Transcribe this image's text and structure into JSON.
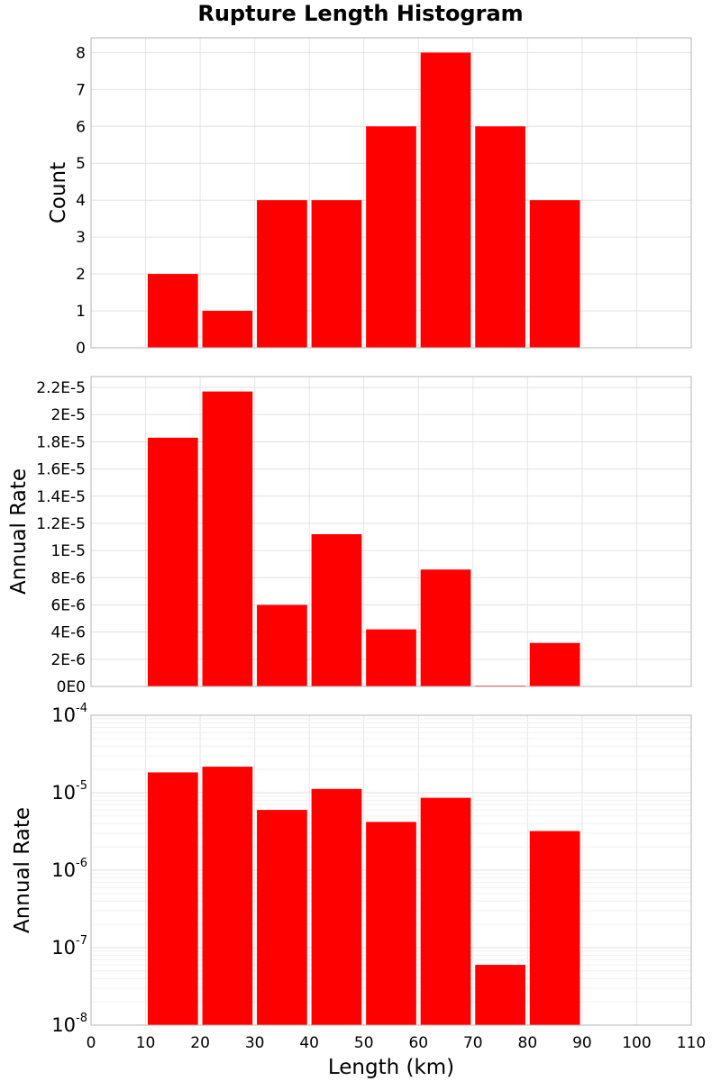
{
  "chart_data": {
    "title": "Rupture Length Histogram",
    "bar_color": "#ff0000",
    "xlabel": "Length (km)",
    "xlim": [
      0,
      110
    ],
    "xticks": [
      "0",
      "10",
      "20",
      "30",
      "40",
      "50",
      "60",
      "70",
      "80",
      "90",
      "100",
      "110"
    ],
    "bin_width": 10,
    "panels": [
      {
        "type": "bar",
        "scale": "linear",
        "ylabel": "Count",
        "ylim": [
          0,
          8.4
        ],
        "yticks": [
          {
            "v": 0,
            "label": "0"
          },
          {
            "v": 1,
            "label": "1"
          },
          {
            "v": 2,
            "label": "2"
          },
          {
            "v": 3,
            "label": "3"
          },
          {
            "v": 4,
            "label": "4"
          },
          {
            "v": 5,
            "label": "5"
          },
          {
            "v": 6,
            "label": "6"
          },
          {
            "v": 7,
            "label": "7"
          },
          {
            "v": 8,
            "label": "8"
          }
        ],
        "x": [
          15,
          25,
          35,
          45,
          55,
          65,
          75,
          85
        ],
        "values": [
          2,
          1,
          4,
          4,
          6,
          8,
          6,
          4
        ]
      },
      {
        "type": "bar",
        "scale": "linear",
        "ylabel": "Annual Rate",
        "ylim": [
          0,
          2.28e-05
        ],
        "yticks": [
          {
            "v": 0,
            "label": "0E0"
          },
          {
            "v": 2e-06,
            "label": "2E-6"
          },
          {
            "v": 4e-06,
            "label": "4E-6"
          },
          {
            "v": 6e-06,
            "label": "6E-6"
          },
          {
            "v": 8e-06,
            "label": "8E-6"
          },
          {
            "v": 1e-05,
            "label": "1E-5"
          },
          {
            "v": 1.2e-05,
            "label": "1.2E-5"
          },
          {
            "v": 1.4e-05,
            "label": "1.4E-5"
          },
          {
            "v": 1.6e-05,
            "label": "1.6E-5"
          },
          {
            "v": 1.8e-05,
            "label": "1.8E-5"
          },
          {
            "v": 2e-05,
            "label": "2E-5"
          },
          {
            "v": 2.2e-05,
            "label": "2.2E-5"
          }
        ],
        "x": [
          15,
          25,
          35,
          45,
          55,
          65,
          75,
          85
        ],
        "values": [
          1.83e-05,
          2.17e-05,
          6e-06,
          1.12e-05,
          4.2e-06,
          8.6e-06,
          6e-08,
          3.2e-06
        ]
      },
      {
        "type": "bar",
        "scale": "log",
        "ylabel": "Annual Rate",
        "ylim": [
          1e-08,
          0.0001
        ],
        "yticks": [
          {
            "v": 0.0001,
            "base": "10",
            "exp": "-4"
          },
          {
            "v": 1e-05,
            "base": "10",
            "exp": "-5"
          },
          {
            "v": 1e-06,
            "base": "10",
            "exp": "-6"
          },
          {
            "v": 1e-07,
            "base": "10",
            "exp": "-7"
          },
          {
            "v": 1e-08,
            "base": "10",
            "exp": "-8"
          }
        ],
        "x": [
          15,
          25,
          35,
          45,
          55,
          65,
          75,
          85
        ],
        "values": [
          1.83e-05,
          2.17e-05,
          6e-06,
          1.12e-05,
          4.2e-06,
          8.6e-06,
          6e-08,
          3.2e-06
        ]
      }
    ]
  }
}
